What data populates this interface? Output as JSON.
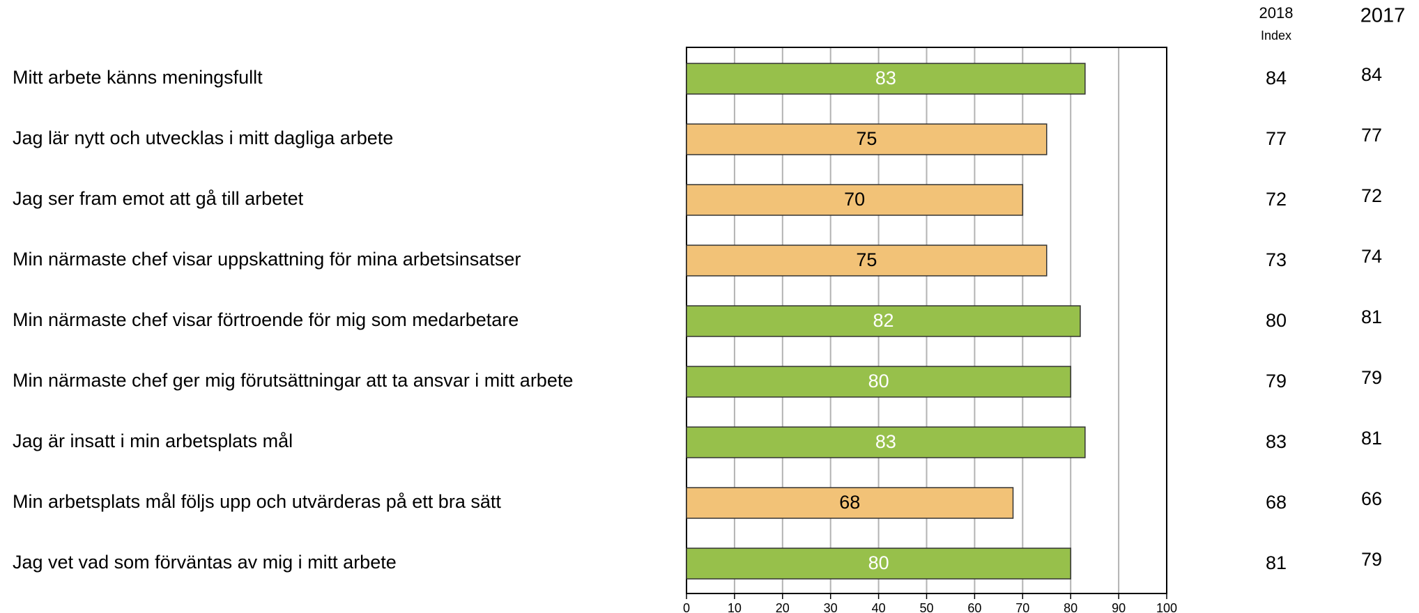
{
  "chart_data": {
    "type": "barh",
    "categories": [
      "Mitt arbete känns meningsfullt",
      "Jag lär nytt och utvecklas i mitt dagliga arbete",
      "Jag ser fram emot att gå till arbetet",
      "Min närmaste chef visar uppskattning för mina arbetsinsatser",
      "Min närmaste chef visar förtroende för mig som medarbetare",
      "Min närmaste chef ger mig förutsättningar att ta ansvar i mitt arbete",
      "Jag är insatt i min arbetsplats mål",
      "Min arbetsplats mål följs upp och utvärderas på ett bra sätt",
      "Jag vet vad som förväntas av mig i mitt arbete"
    ],
    "values": [
      83,
      75,
      70,
      75,
      82,
      80,
      83,
      68,
      80
    ],
    "colors": [
      "#97c04b",
      "#f2c277",
      "#f2c277",
      "#f2c277",
      "#97c04b",
      "#97c04b",
      "#97c04b",
      "#f2c277",
      "#97c04b"
    ],
    "label_colors": [
      "#ffffff",
      "#000000",
      "#000000",
      "#000000",
      "#ffffff",
      "#ffffff",
      "#ffffff",
      "#000000",
      "#ffffff"
    ],
    "xlim": [
      0,
      100
    ],
    "xticks": [
      0,
      10,
      20,
      30,
      40,
      50,
      60,
      70,
      80,
      90,
      100
    ],
    "grid": true,
    "index_2018": {
      "title": "2018",
      "subtitle": "Index",
      "values": [
        84,
        77,
        72,
        73,
        80,
        79,
        83,
        68,
        81
      ]
    },
    "values_2017": {
      "title": "2017",
      "values": [
        84,
        77,
        72,
        74,
        81,
        79,
        81,
        66,
        79
      ]
    }
  }
}
